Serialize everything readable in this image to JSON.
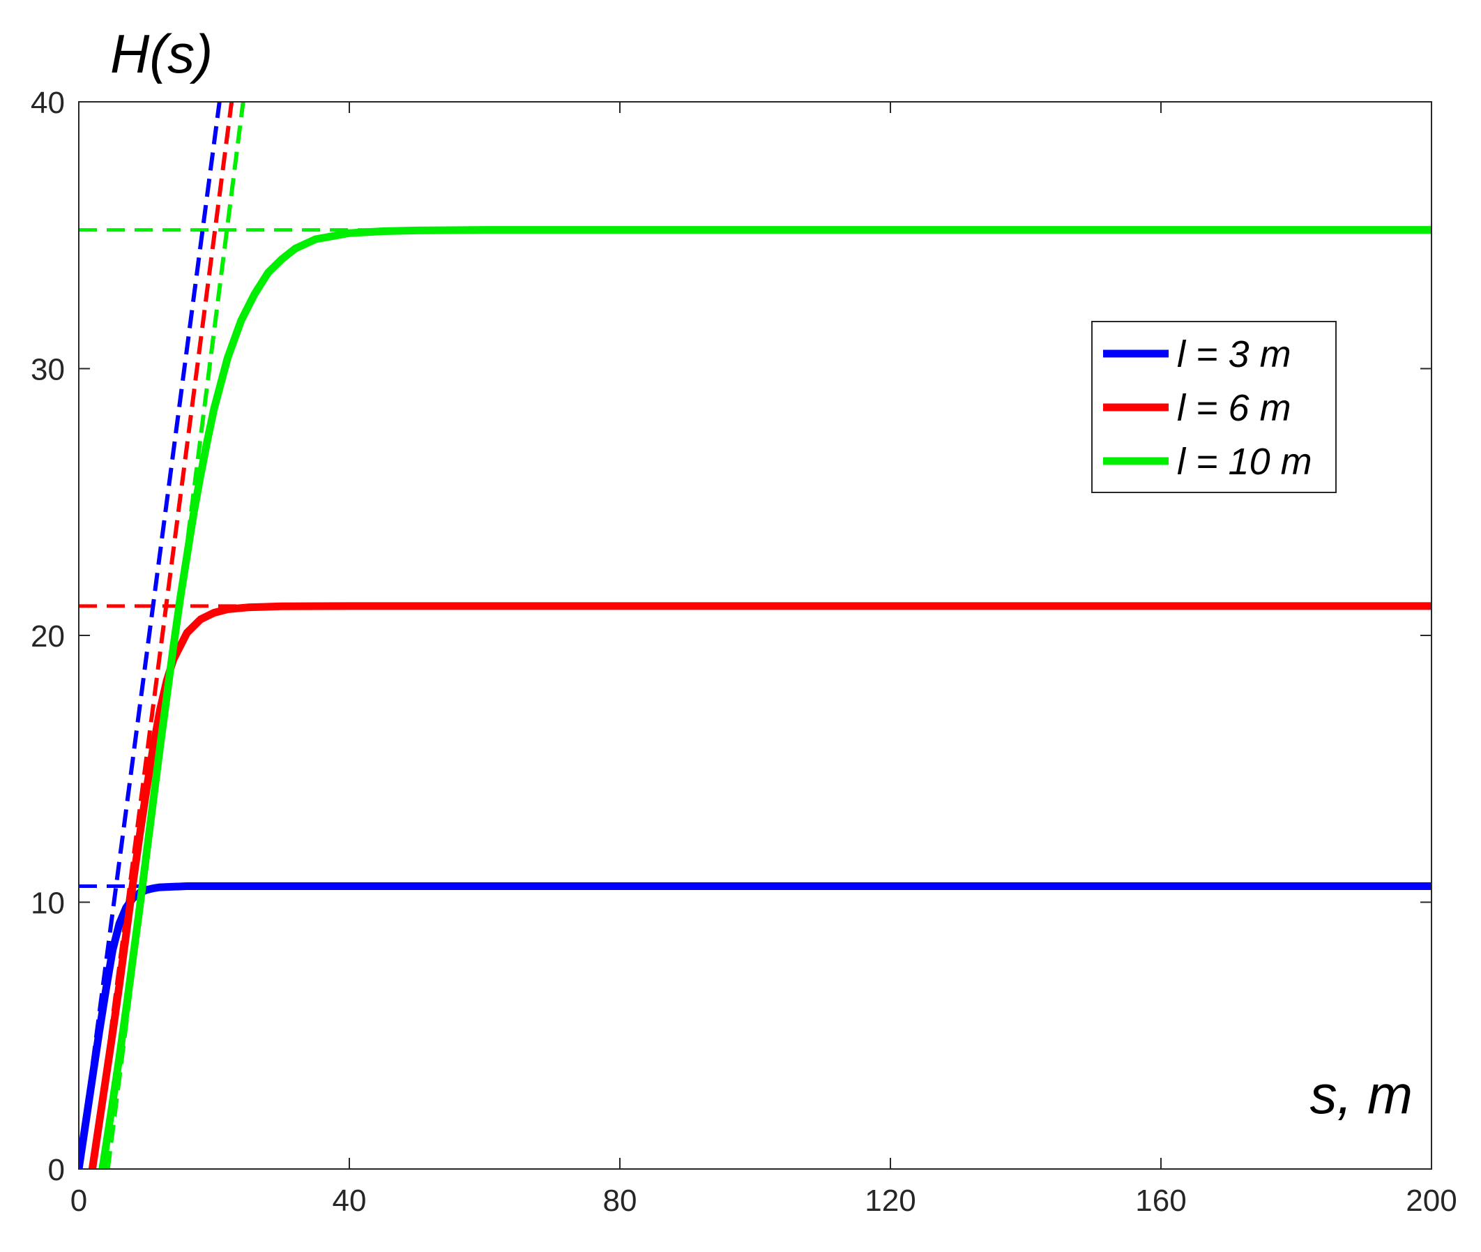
{
  "chart_data": {
    "type": "line",
    "xlabel": "s, m",
    "ylabel": "H(s)",
    "xlim": [
      0,
      200
    ],
    "ylim": [
      0,
      40
    ],
    "xticks": [
      0,
      40,
      80,
      120,
      160,
      200
    ],
    "yticks": [
      0,
      10,
      20,
      30,
      40
    ],
    "grid": false,
    "legend_position": "upper-right",
    "series": [
      {
        "name": "l = 3 m",
        "color": "#0000ff",
        "asymptote": 10.6,
        "x": [
          0,
          1,
          2,
          3,
          4,
          5,
          6,
          7,
          8,
          9,
          10,
          11,
          12,
          14,
          16,
          20,
          30,
          50,
          80,
          120,
          160,
          200
        ],
        "y": [
          0,
          1.7,
          3.4,
          5.1,
          6.7,
          8.2,
          9.2,
          9.8,
          10.15,
          10.35,
          10.46,
          10.52,
          10.56,
          10.58,
          10.6,
          10.6,
          10.6,
          10.6,
          10.6,
          10.6,
          10.6,
          10.6
        ]
      },
      {
        "name": "l = 6 m",
        "color": "#ff0000",
        "asymptote": 21.1,
        "x": [
          2,
          3,
          4,
          5,
          6,
          7,
          8,
          9,
          10,
          11,
          12,
          13,
          14,
          16,
          18,
          20,
          22,
          25,
          30,
          40,
          60,
          100,
          150,
          200
        ],
        "y": [
          0,
          1.7,
          3.4,
          5.1,
          6.9,
          8.8,
          10.7,
          12.5,
          14.2,
          15.8,
          17.2,
          18.3,
          19.1,
          20.1,
          20.6,
          20.85,
          20.98,
          21.05,
          21.09,
          21.1,
          21.1,
          21.1,
          21.1,
          21.1
        ]
      },
      {
        "name": "l = 10 m",
        "color": "#00ee00",
        "asymptote": 35.2,
        "x": [
          3.5,
          5,
          6,
          7,
          8,
          9,
          10,
          11,
          12,
          13,
          14,
          15,
          16,
          17,
          18,
          19,
          20,
          22,
          24,
          26,
          28,
          30,
          32,
          35,
          40,
          45,
          50,
          60,
          80,
          120,
          160,
          200
        ],
        "y": [
          0,
          2.5,
          4.2,
          6,
          7.9,
          9.8,
          11.8,
          13.8,
          15.8,
          17.7,
          19.6,
          21.4,
          23,
          24.6,
          26,
          27.3,
          28.5,
          30.4,
          31.8,
          32.8,
          33.6,
          34.1,
          34.5,
          34.85,
          35.08,
          35.15,
          35.18,
          35.2,
          35.2,
          35.2,
          35.2,
          35.2
        ]
      }
    ],
    "tangent_lines": [
      {
        "series": "l = 3 m",
        "color": "#0000ff",
        "x": [
          0,
          20.8
        ],
        "y": [
          0,
          40
        ]
      },
      {
        "series": "l = 6 m",
        "color": "#ff0000",
        "x": [
          2.1,
          22.6
        ],
        "y": [
          0,
          40
        ]
      },
      {
        "series": "l = 10 m",
        "color": "#00ee00",
        "x": [
          4.3,
          24.3
        ],
        "y": [
          0,
          40
        ]
      }
    ],
    "asymptote_lines": [
      {
        "series": "l = 3 m",
        "color": "#0000ff",
        "x": [
          0,
          10
        ],
        "y": [
          10.6,
          10.6
        ]
      },
      {
        "series": "l = 6 m",
        "color": "#ff0000",
        "x": [
          0,
          28
        ],
        "y": [
          21.1,
          21.1
        ]
      },
      {
        "series": "l = 10 m",
        "color": "#00ee00",
        "x": [
          0,
          48
        ],
        "y": [
          35.2,
          35.2
        ]
      }
    ]
  }
}
